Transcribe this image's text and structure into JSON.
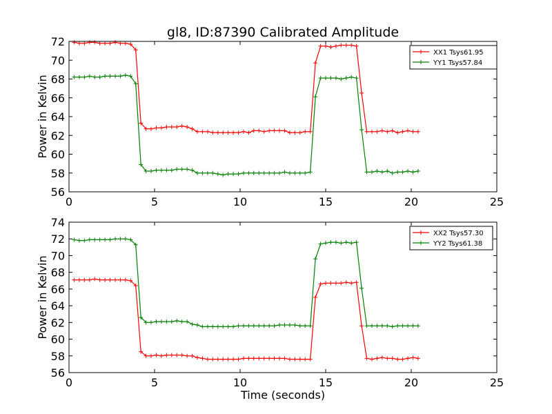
{
  "chart_data": [
    {
      "type": "line",
      "title": "gl8, ID:87390 Calibrated Amplitude",
      "xlabel": "",
      "ylabel": "Power in Kelvin",
      "xlim": [
        0,
        25
      ],
      "ylim": [
        56,
        72
      ],
      "xticks": [
        "0",
        "5",
        "10",
        "15",
        "20",
        "25"
      ],
      "yticks": [
        "56",
        "58",
        "60",
        "62",
        "64",
        "66",
        "68",
        "70",
        "72"
      ],
      "legend": "top-right",
      "grid": false,
      "series": [
        {
          "name": "XX1 Tsys61.95",
          "color": "#ff0000",
          "x": [
            0.3,
            0.6,
            0.9,
            1.2,
            1.5,
            1.8,
            2.1,
            2.4,
            2.7,
            3.0,
            3.3,
            3.6,
            3.9,
            4.2,
            4.5,
            4.8,
            5.1,
            5.4,
            5.7,
            6.0,
            6.3,
            6.6,
            6.9,
            7.2,
            7.5,
            7.8,
            8.1,
            8.4,
            8.7,
            9.0,
            9.3,
            9.6,
            9.9,
            10.2,
            10.5,
            10.8,
            11.1,
            11.4,
            11.7,
            12.0,
            12.3,
            12.6,
            12.9,
            13.2,
            13.5,
            13.8,
            14.1,
            14.4,
            14.7,
            15.0,
            15.3,
            15.6,
            15.9,
            16.2,
            16.5,
            16.8,
            17.1,
            17.4,
            17.7,
            18.0,
            18.3,
            18.6,
            18.9,
            19.2,
            19.5,
            19.8,
            20.1,
            20.4
          ],
          "y": [
            71.9,
            71.8,
            71.8,
            71.9,
            71.9,
            71.8,
            71.8,
            71.8,
            71.9,
            71.8,
            71.8,
            71.7,
            71.1,
            63.3,
            62.7,
            62.7,
            62.8,
            62.8,
            62.9,
            62.9,
            62.9,
            63.0,
            62.9,
            62.7,
            62.4,
            62.4,
            62.4,
            62.3,
            62.3,
            62.3,
            62.3,
            62.3,
            62.3,
            62.4,
            62.3,
            62.5,
            62.5,
            62.4,
            62.5,
            62.5,
            62.5,
            62.5,
            62.3,
            62.3,
            62.3,
            62.4,
            62.4,
            69.7,
            71.5,
            71.5,
            71.4,
            71.5,
            71.6,
            71.6,
            71.6,
            71.5,
            66.5,
            62.4,
            62.4,
            62.4,
            62.5,
            62.4,
            62.5,
            62.3,
            62.4,
            62.5,
            62.4,
            62.4
          ]
        },
        {
          "name": "YY1 Tsys57.84",
          "color": "#008000",
          "x": [
            0.3,
            0.6,
            0.9,
            1.2,
            1.5,
            1.8,
            2.1,
            2.4,
            2.7,
            3.0,
            3.3,
            3.6,
            3.9,
            4.2,
            4.5,
            4.8,
            5.1,
            5.4,
            5.7,
            6.0,
            6.3,
            6.6,
            6.9,
            7.2,
            7.5,
            7.8,
            8.1,
            8.4,
            8.7,
            9.0,
            9.3,
            9.6,
            9.9,
            10.2,
            10.5,
            10.8,
            11.1,
            11.4,
            11.7,
            12.0,
            12.3,
            12.6,
            12.9,
            13.2,
            13.5,
            13.8,
            14.1,
            14.4,
            14.7,
            15.0,
            15.3,
            15.6,
            15.9,
            16.2,
            16.5,
            16.8,
            17.1,
            17.4,
            17.7,
            18.0,
            18.3,
            18.6,
            18.9,
            19.2,
            19.5,
            19.8,
            20.1,
            20.4
          ],
          "y": [
            68.2,
            68.2,
            68.2,
            68.3,
            68.2,
            68.2,
            68.3,
            68.3,
            68.3,
            68.3,
            68.4,
            68.3,
            67.5,
            58.9,
            58.2,
            58.2,
            58.3,
            58.3,
            58.3,
            58.3,
            58.4,
            58.4,
            58.4,
            58.3,
            58.0,
            58.0,
            58.0,
            58.0,
            57.9,
            57.8,
            57.9,
            57.9,
            57.9,
            58.0,
            58.0,
            58.0,
            58.0,
            58.0,
            58.0,
            58.0,
            58.0,
            58.1,
            58.0,
            58.0,
            58.0,
            58.0,
            58.1,
            66.1,
            68.1,
            68.1,
            68.1,
            68.1,
            68.0,
            68.1,
            68.2,
            68.1,
            62.6,
            58.1,
            58.1,
            58.2,
            58.1,
            58.2,
            58.0,
            58.1,
            58.1,
            58.2,
            58.1,
            58.2
          ]
        }
      ]
    },
    {
      "type": "line",
      "title": "",
      "xlabel": "Time (seconds)",
      "ylabel": "Power in Kelvin",
      "xlim": [
        0,
        25
      ],
      "ylim": [
        56,
        74
      ],
      "xticks": [
        "0",
        "5",
        "10",
        "15",
        "20",
        "25"
      ],
      "yticks": [
        "56",
        "58",
        "60",
        "62",
        "64",
        "66",
        "68",
        "70",
        "72",
        "74"
      ],
      "legend": "top-right",
      "grid": false,
      "series": [
        {
          "name": "XX2 Tsys57.30",
          "color": "#ff0000",
          "x": [
            0.3,
            0.6,
            0.9,
            1.2,
            1.5,
            1.8,
            2.1,
            2.4,
            2.7,
            3.0,
            3.3,
            3.6,
            3.9,
            4.2,
            4.5,
            4.8,
            5.1,
            5.4,
            5.7,
            6.0,
            6.3,
            6.6,
            6.9,
            7.2,
            7.5,
            7.8,
            8.1,
            8.4,
            8.7,
            9.0,
            9.3,
            9.6,
            9.9,
            10.2,
            10.5,
            10.8,
            11.1,
            11.4,
            11.7,
            12.0,
            12.3,
            12.6,
            12.9,
            13.2,
            13.5,
            13.8,
            14.1,
            14.4,
            14.7,
            15.0,
            15.3,
            15.6,
            15.9,
            16.2,
            16.5,
            16.8,
            17.1,
            17.4,
            17.7,
            18.0,
            18.3,
            18.6,
            18.9,
            19.2,
            19.5,
            19.8,
            20.1,
            20.4
          ],
          "y": [
            67.1,
            67.1,
            67.1,
            67.1,
            67.2,
            67.1,
            67.1,
            67.1,
            67.1,
            67.1,
            67.1,
            67.0,
            66.4,
            58.5,
            58.0,
            58.0,
            58.1,
            58.0,
            58.1,
            58.1,
            58.1,
            58.1,
            58.0,
            58.0,
            57.8,
            57.7,
            57.6,
            57.6,
            57.6,
            57.6,
            57.6,
            57.6,
            57.6,
            57.7,
            57.7,
            57.7,
            57.7,
            57.7,
            57.7,
            57.7,
            57.7,
            57.7,
            57.6,
            57.6,
            57.6,
            57.6,
            57.6,
            65.0,
            66.6,
            66.7,
            66.7,
            66.7,
            66.7,
            66.8,
            66.7,
            66.8,
            61.6,
            57.7,
            57.6,
            57.7,
            57.8,
            57.7,
            57.7,
            57.6,
            57.6,
            57.7,
            57.8,
            57.7
          ]
        },
        {
          "name": "YY2 Tsys61.38",
          "color": "#008000",
          "x": [
            0.3,
            0.6,
            0.9,
            1.2,
            1.5,
            1.8,
            2.1,
            2.4,
            2.7,
            3.0,
            3.3,
            3.6,
            3.9,
            4.2,
            4.5,
            4.8,
            5.1,
            5.4,
            5.7,
            6.0,
            6.3,
            6.6,
            6.9,
            7.2,
            7.5,
            7.8,
            8.1,
            8.4,
            8.7,
            9.0,
            9.3,
            9.6,
            9.9,
            10.2,
            10.5,
            10.8,
            11.1,
            11.4,
            11.7,
            12.0,
            12.3,
            12.6,
            12.9,
            13.2,
            13.5,
            13.8,
            14.1,
            14.4,
            14.7,
            15.0,
            15.3,
            15.6,
            15.9,
            16.2,
            16.5,
            16.8,
            17.1,
            17.4,
            17.7,
            18.0,
            18.3,
            18.6,
            18.9,
            19.2,
            19.5,
            19.8,
            20.1,
            20.4
          ],
          "y": [
            71.9,
            71.8,
            71.8,
            71.9,
            71.9,
            71.9,
            71.9,
            71.9,
            72.0,
            72.0,
            72.0,
            71.9,
            71.3,
            62.6,
            62.0,
            62.0,
            62.1,
            62.1,
            62.1,
            62.1,
            62.2,
            62.1,
            62.1,
            61.8,
            61.7,
            61.5,
            61.5,
            61.5,
            61.5,
            61.5,
            61.5,
            61.5,
            61.6,
            61.6,
            61.6,
            61.6,
            61.6,
            61.6,
            61.6,
            61.6,
            61.7,
            61.7,
            61.7,
            61.7,
            61.6,
            61.6,
            61.6,
            69.6,
            71.4,
            71.5,
            71.6,
            71.6,
            71.5,
            71.6,
            71.5,
            71.6,
            66.1,
            61.6,
            61.6,
            61.6,
            61.6,
            61.6,
            61.5,
            61.6,
            61.6,
            61.6,
            61.6,
            61.6
          ]
        }
      ]
    }
  ]
}
